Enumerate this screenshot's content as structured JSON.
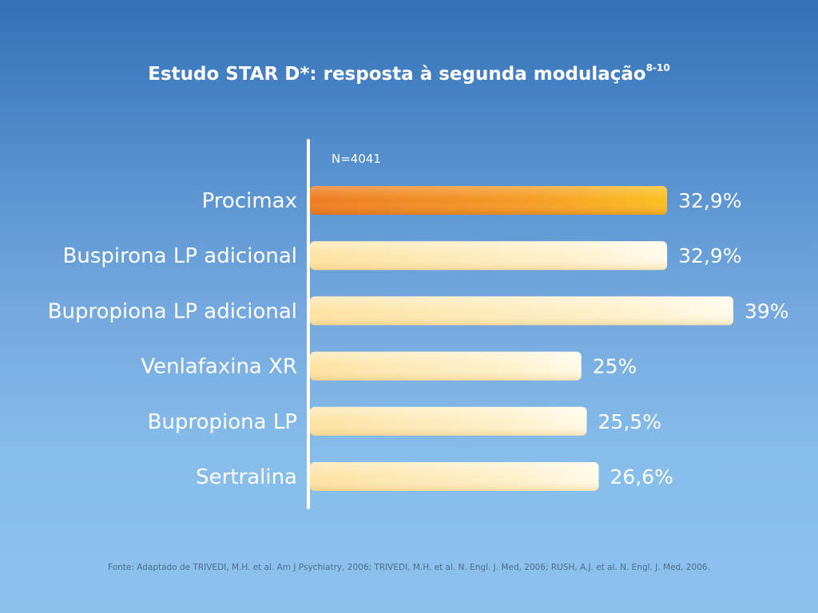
{
  "title": "Estudo STAR D*: resposta à segunda modulação",
  "title_superscript": "8-10",
  "source": "Fonte: Adaptado de TRIVEDI, M.H. et al. Am J Psychiatry, 2006; TRIVEDI, M.H. et al. N. Engl. J. Med, 2006; RUSH, A.J. et al. N. Engl. J. Med, 2006.",
  "colors": {
    "highlight_bar": "#f2901f",
    "bar": "#fde9b3",
    "axis": "#ffffff"
  },
  "chart_data": {
    "type": "bar",
    "orientation": "horizontal",
    "annotation": "N=4041",
    "categories": [
      "Procimax",
      "Buspirona LP adicional",
      "Bupropiona LP adicional",
      "Venlafaxina XR",
      "Bupropiona LP",
      "Sertralina"
    ],
    "values": [
      32.9,
      32.9,
      39,
      25,
      25.5,
      26.6
    ],
    "value_labels": [
      "32,9%",
      "32,9%",
      "39%",
      "25%",
      "25,5%",
      "26,6%"
    ],
    "highlighted": [
      true,
      false,
      false,
      false,
      false,
      false
    ],
    "xlim": [
      0,
      39
    ],
    "grid": false,
    "legend": "none"
  }
}
